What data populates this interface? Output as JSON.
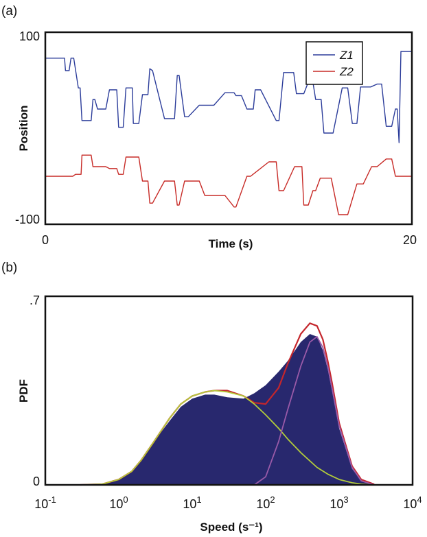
{
  "chart_data": [
    {
      "panel_label": "(a)",
      "type": "line",
      "xlabel": "Time (s)",
      "ylabel": "Position",
      "xlim": [
        0,
        20
      ],
      "ylim": [
        -100,
        100
      ],
      "xtick_labels": [
        "0",
        "20"
      ],
      "ytick_labels": [
        "100",
        "-100"
      ],
      "legend": {
        "position": "top-right",
        "entries": [
          "Z1",
          "Z2"
        ]
      },
      "series": [
        {
          "name": "Z1",
          "color": "#2b3c9a",
          "x": [
            0,
            1.05,
            1.1,
            1.3,
            1.4,
            1.55,
            1.8,
            1.9,
            2.0,
            2.5,
            2.6,
            2.7,
            2.85,
            3.3,
            3.5,
            3.9,
            4.0,
            4.25,
            4.4,
            4.75,
            4.8,
            5.1,
            5.3,
            5.6,
            5.7,
            5.85,
            6.5,
            7.05,
            7.2,
            7.3,
            7.6,
            7.8,
            8.4,
            9.2,
            9.8,
            10.3,
            10.4,
            10.7,
            11.0,
            11.35,
            11.45,
            11.75,
            12.6,
            12.75,
            13.0,
            13.55,
            13.7,
            14.1,
            14.35,
            14.6,
            14.75,
            15.05,
            15.2,
            15.7,
            16.2,
            16.5,
            16.75,
            17.0,
            17.2,
            17.75,
            18.1,
            18.35,
            18.6,
            18.9,
            19.1,
            19.2,
            19.3,
            19.4,
            20.0
          ],
          "y": [
            73,
            73,
            60,
            60,
            73,
            73,
            42,
            42,
            8,
            8,
            30,
            30,
            20,
            20,
            40,
            40,
            1,
            1,
            42,
            42,
            5,
            5,
            35,
            35,
            62,
            60,
            10,
            10,
            55,
            55,
            12,
            12,
            24,
            24,
            37,
            37,
            34,
            34,
            20,
            20,
            40,
            40,
            8,
            8,
            58,
            58,
            36,
            36,
            48,
            48,
            30,
            30,
            -5,
            -5,
            42,
            42,
            5,
            5,
            43,
            43,
            46,
            46,
            2,
            2,
            20,
            20,
            -15,
            80,
            80
          ]
        },
        {
          "name": "Z2",
          "color": "#c72a26",
          "x": [
            0,
            1.5,
            1.65,
            1.95,
            2.0,
            2.5,
            2.6,
            3.3,
            3.5,
            3.9,
            4.0,
            4.25,
            4.4,
            5.1,
            5.3,
            5.6,
            5.7,
            5.85,
            6.5,
            7.05,
            7.2,
            7.3,
            7.6,
            8.4,
            8.7,
            9.8,
            10.3,
            10.4,
            11.0,
            11.2,
            12.2,
            12.6,
            12.75,
            13.0,
            13.6,
            14.0,
            14.1,
            14.35,
            14.6,
            14.75,
            15.0,
            15.6,
            16.0,
            16.5,
            17.0,
            17.35,
            17.8,
            18.1,
            18.6,
            18.9,
            19.1,
            19.4,
            20.0
          ],
          "y": [
            -50,
            -50,
            -48,
            -48,
            -28,
            -28,
            -40,
            -40,
            -42,
            -42,
            -48,
            -48,
            -30,
            -30,
            -55,
            -55,
            -78,
            -78,
            -55,
            -55,
            -80,
            -80,
            -55,
            -55,
            -70,
            -70,
            -82,
            -82,
            -50,
            -50,
            -35,
            -35,
            -65,
            -65,
            -40,
            -40,
            -80,
            -80,
            -65,
            -65,
            -52,
            -52,
            -90,
            -90,
            -58,
            -58,
            -40,
            -40,
            -32,
            -32,
            -50,
            -50,
            -50
          ]
        }
      ]
    },
    {
      "panel_label": "(b)",
      "type": "area",
      "xlabel": "Speed (s⁻¹)",
      "ylabel": "PDF",
      "xscale": "log",
      "xlim": [
        0.1,
        10000
      ],
      "ylim": [
        0,
        0.7
      ],
      "ytick_labels": [
        ".7",
        "0"
      ],
      "xtick_labels": [
        "10",
        "10",
        "10",
        "10",
        "10",
        "10"
      ],
      "xtick_exponents": [
        "-1",
        "0",
        "1",
        "2",
        "3",
        "4"
      ],
      "histogram": {
        "color": "#28286e",
        "x": [
          0.3,
          0.6,
          1,
          1.5,
          2,
          3,
          5,
          7,
          10,
          15,
          20,
          30,
          50,
          70,
          100,
          150,
          200,
          300,
          400,
          500,
          600,
          700,
          800,
          1000,
          1500,
          2000,
          3000
        ],
        "y": [
          0.0,
          0.003,
          0.02,
          0.05,
          0.09,
          0.16,
          0.24,
          0.29,
          0.32,
          0.335,
          0.335,
          0.325,
          0.32,
          0.34,
          0.37,
          0.42,
          0.46,
          0.53,
          0.56,
          0.55,
          0.5,
          0.43,
          0.35,
          0.21,
          0.06,
          0.015,
          0.0
        ]
      },
      "series": [
        {
          "type": "fit",
          "color": "#c4262c",
          "x": [
            0.3,
            0.6,
            1,
            1.5,
            2,
            3,
            5,
            7,
            10,
            15,
            20,
            30,
            50,
            70,
            100,
            150,
            200,
            300,
            400,
            500,
            600,
            700,
            800,
            1000,
            1500,
            2000,
            3000
          ],
          "y": [
            0.0,
            0.003,
            0.02,
            0.05,
            0.09,
            0.16,
            0.25,
            0.3,
            0.33,
            0.345,
            0.35,
            0.35,
            0.33,
            0.305,
            0.3,
            0.36,
            0.45,
            0.56,
            0.6,
            0.59,
            0.54,
            0.46,
            0.38,
            0.23,
            0.07,
            0.02,
            0.002
          ]
        },
        {
          "type": "component",
          "color": "#b3cc3a",
          "x": [
            0.3,
            0.6,
            1,
            1.5,
            2,
            3,
            5,
            7,
            10,
            15,
            20,
            30,
            50,
            70,
            100,
            150,
            200,
            300,
            500,
            700,
            1000,
            1500,
            2000,
            3000
          ],
          "y": [
            0.0,
            0.003,
            0.02,
            0.05,
            0.09,
            0.16,
            0.25,
            0.3,
            0.33,
            0.345,
            0.35,
            0.345,
            0.33,
            0.3,
            0.26,
            0.21,
            0.17,
            0.12,
            0.065,
            0.04,
            0.02,
            0.008,
            0.003,
            0.0
          ]
        },
        {
          "type": "component",
          "color": "#9a5aa8",
          "x": [
            70,
            100,
            150,
            200,
            300,
            400,
            500,
            600,
            700,
            800,
            1000,
            1500,
            2000,
            3000
          ],
          "y": [
            0.0,
            0.03,
            0.16,
            0.28,
            0.44,
            0.53,
            0.55,
            0.51,
            0.44,
            0.36,
            0.22,
            0.065,
            0.015,
            0.0
          ]
        }
      ]
    }
  ]
}
